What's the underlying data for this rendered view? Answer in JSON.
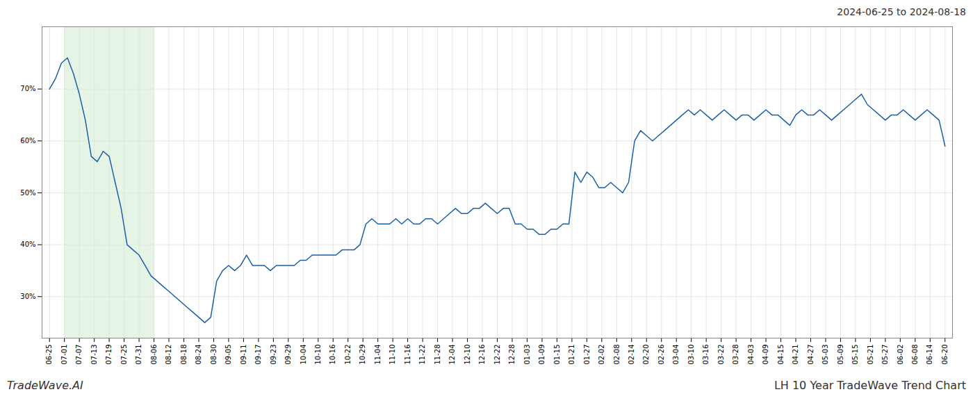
{
  "chart_data": {
    "type": "line",
    "title": "2024-06-25 to 2024-08-18",
    "annotations": [
      "TradeWave.AI",
      "LH 10 Year TradeWave Trend Chart"
    ],
    "color": "#1a5fa8",
    "grid": true,
    "shaded_range": [
      1,
      7
    ],
    "shade_color": "#d4ecd4",
    "xlim": [
      -0.5,
      60.5
    ],
    "xticks": [
      {
        "value": 0,
        "label": "06-25"
      },
      {
        "value": 1,
        "label": "07-01"
      },
      {
        "value": 2,
        "label": "07-07"
      },
      {
        "value": 3,
        "label": "07-13"
      },
      {
        "value": 4,
        "label": "07-19"
      },
      {
        "value": 5,
        "label": "07-25"
      },
      {
        "value": 6,
        "label": "07-31"
      },
      {
        "value": 7,
        "label": "08-06"
      },
      {
        "value": 8,
        "label": "08-12"
      },
      {
        "value": 9,
        "label": "08-18"
      },
      {
        "value": 10,
        "label": "08-24"
      },
      {
        "value": 11,
        "label": "08-30"
      },
      {
        "value": 12,
        "label": "09-05"
      },
      {
        "value": 13,
        "label": "09-11"
      },
      {
        "value": 14,
        "label": "09-17"
      },
      {
        "value": 15,
        "label": "09-23"
      },
      {
        "value": 16,
        "label": "09-29"
      },
      {
        "value": 17,
        "label": "10-04"
      },
      {
        "value": 18,
        "label": "10-10"
      },
      {
        "value": 19,
        "label": "10-16"
      },
      {
        "value": 20,
        "label": "10-22"
      },
      {
        "value": 21,
        "label": "10-29"
      },
      {
        "value": 22,
        "label": "11-04"
      },
      {
        "value": 23,
        "label": "11-10"
      },
      {
        "value": 24,
        "label": "11-16"
      },
      {
        "value": 25,
        "label": "11-22"
      },
      {
        "value": 26,
        "label": "11-28"
      },
      {
        "value": 27,
        "label": "12-04"
      },
      {
        "value": 28,
        "label": "12-10"
      },
      {
        "value": 29,
        "label": "12-16"
      },
      {
        "value": 30,
        "label": "12-22"
      },
      {
        "value": 31,
        "label": "12-28"
      },
      {
        "value": 32,
        "label": "01-03"
      },
      {
        "value": 33,
        "label": "01-09"
      },
      {
        "value": 34,
        "label": "01-15"
      },
      {
        "value": 35,
        "label": "01-21"
      },
      {
        "value": 36,
        "label": "01-27"
      },
      {
        "value": 37,
        "label": "02-02"
      },
      {
        "value": 38,
        "label": "02-08"
      },
      {
        "value": 39,
        "label": "02-14"
      },
      {
        "value": 40,
        "label": "02-20"
      },
      {
        "value": 41,
        "label": "02-26"
      },
      {
        "value": 42,
        "label": "03-04"
      },
      {
        "value": 43,
        "label": "03-10"
      },
      {
        "value": 44,
        "label": "03-16"
      },
      {
        "value": 45,
        "label": "03-22"
      },
      {
        "value": 46,
        "label": "03-28"
      },
      {
        "value": 47,
        "label": "04-03"
      },
      {
        "value": 48,
        "label": "04-09"
      },
      {
        "value": 49,
        "label": "04-15"
      },
      {
        "value": 50,
        "label": "04-21"
      },
      {
        "value": 51,
        "label": "04-27"
      },
      {
        "value": 52,
        "label": "05-03"
      },
      {
        "value": 53,
        "label": "05-09"
      },
      {
        "value": 54,
        "label": "05-15"
      },
      {
        "value": 55,
        "label": "05-21"
      },
      {
        "value": 56,
        "label": "05-27"
      },
      {
        "value": 57,
        "label": "06-02"
      },
      {
        "value": 58,
        "label": "06-08"
      },
      {
        "value": 59,
        "label": "06-14"
      },
      {
        "value": 60,
        "label": "06-20"
      }
    ],
    "ylim": [
      22,
      82
    ],
    "yticks": [
      {
        "value": 30,
        "label": "30%"
      },
      {
        "value": 40,
        "label": "40%"
      },
      {
        "value": 50,
        "label": "50%"
      },
      {
        "value": 60,
        "label": "60%"
      },
      {
        "value": 70,
        "label": "70%"
      }
    ],
    "x": [
      0,
      0.4,
      0.8,
      1.2,
      1.6,
      2,
      2.4,
      2.8,
      3.2,
      3.6,
      4,
      4.4,
      4.8,
      5.2,
      5.6,
      6,
      6.4,
      6.8,
      7.2,
      7.6,
      8,
      8.4,
      8.8,
      9.2,
      9.6,
      10,
      10.4,
      10.8,
      11.2,
      11.6,
      12,
      12.4,
      12.8,
      13.2,
      13.6,
      14,
      14.4,
      14.8,
      15.2,
      15.6,
      16,
      16.4,
      16.8,
      17.2,
      17.6,
      18,
      18.4,
      18.8,
      19.2,
      19.6,
      20,
      20.4,
      20.8,
      21.2,
      21.6,
      22,
      22.4,
      22.8,
      23.2,
      23.6,
      24,
      24.4,
      24.8,
      25.2,
      25.6,
      26,
      26.4,
      26.8,
      27.2,
      27.6,
      28,
      28.4,
      28.8,
      29.2,
      29.6,
      30,
      30.4,
      30.8,
      31.2,
      31.6,
      32,
      32.4,
      32.8,
      33.2,
      33.6,
      34,
      34.4,
      34.8,
      35.2,
      35.6,
      36,
      36.4,
      36.8,
      37.2,
      37.6,
      38,
      38.4,
      38.8,
      39.2,
      39.6,
      40,
      40.4,
      40.8,
      41.2,
      41.6,
      42,
      42.4,
      42.8,
      43.2,
      43.6,
      44,
      44.4,
      44.8,
      45.2,
      45.6,
      46,
      46.4,
      46.8,
      47.2,
      47.6,
      48,
      48.4,
      48.8,
      49.2,
      49.6,
      50,
      50.4,
      50.8,
      51.2,
      51.6,
      52,
      52.4,
      52.8,
      53.2,
      53.6,
      54,
      54.4,
      54.8,
      55.2,
      55.6,
      56,
      56.4,
      56.8,
      57.2,
      57.6,
      58,
      58.4,
      58.8,
      59.2,
      59.6,
      60
    ],
    "values": [
      70,
      72,
      75,
      76,
      73,
      69,
      64,
      57,
      56,
      58,
      57,
      52,
      47,
      40,
      39,
      38,
      36,
      34,
      33,
      32,
      31,
      30,
      29,
      28,
      27,
      26,
      25,
      26,
      33,
      35,
      36,
      35,
      36,
      38,
      36,
      36,
      36,
      35,
      36,
      36,
      36,
      36,
      37,
      37,
      38,
      38,
      38,
      38,
      38,
      39,
      39,
      39,
      40,
      44,
      45,
      44,
      44,
      44,
      45,
      44,
      45,
      44,
      44,
      45,
      45,
      44,
      45,
      46,
      47,
      46,
      46,
      47,
      47,
      48,
      47,
      46,
      47,
      47,
      44,
      44,
      43,
      43,
      42,
      42,
      43,
      43,
      44,
      44,
      54,
      52,
      54,
      53,
      51,
      51,
      52,
      51,
      50,
      52,
      60,
      62,
      61,
      60,
      61,
      62,
      63,
      64,
      65,
      66,
      65,
      66,
      65,
      64,
      65,
      66,
      65,
      64,
      65,
      65,
      64,
      65,
      66,
      65,
      65,
      64,
      63,
      65,
      66,
      65,
      65,
      66,
      65,
      64,
      65,
      66,
      67,
      68,
      69,
      67,
      66,
      65,
      64,
      65,
      65,
      66,
      65,
      64,
      65,
      66,
      65,
      64,
      59
    ]
  }
}
